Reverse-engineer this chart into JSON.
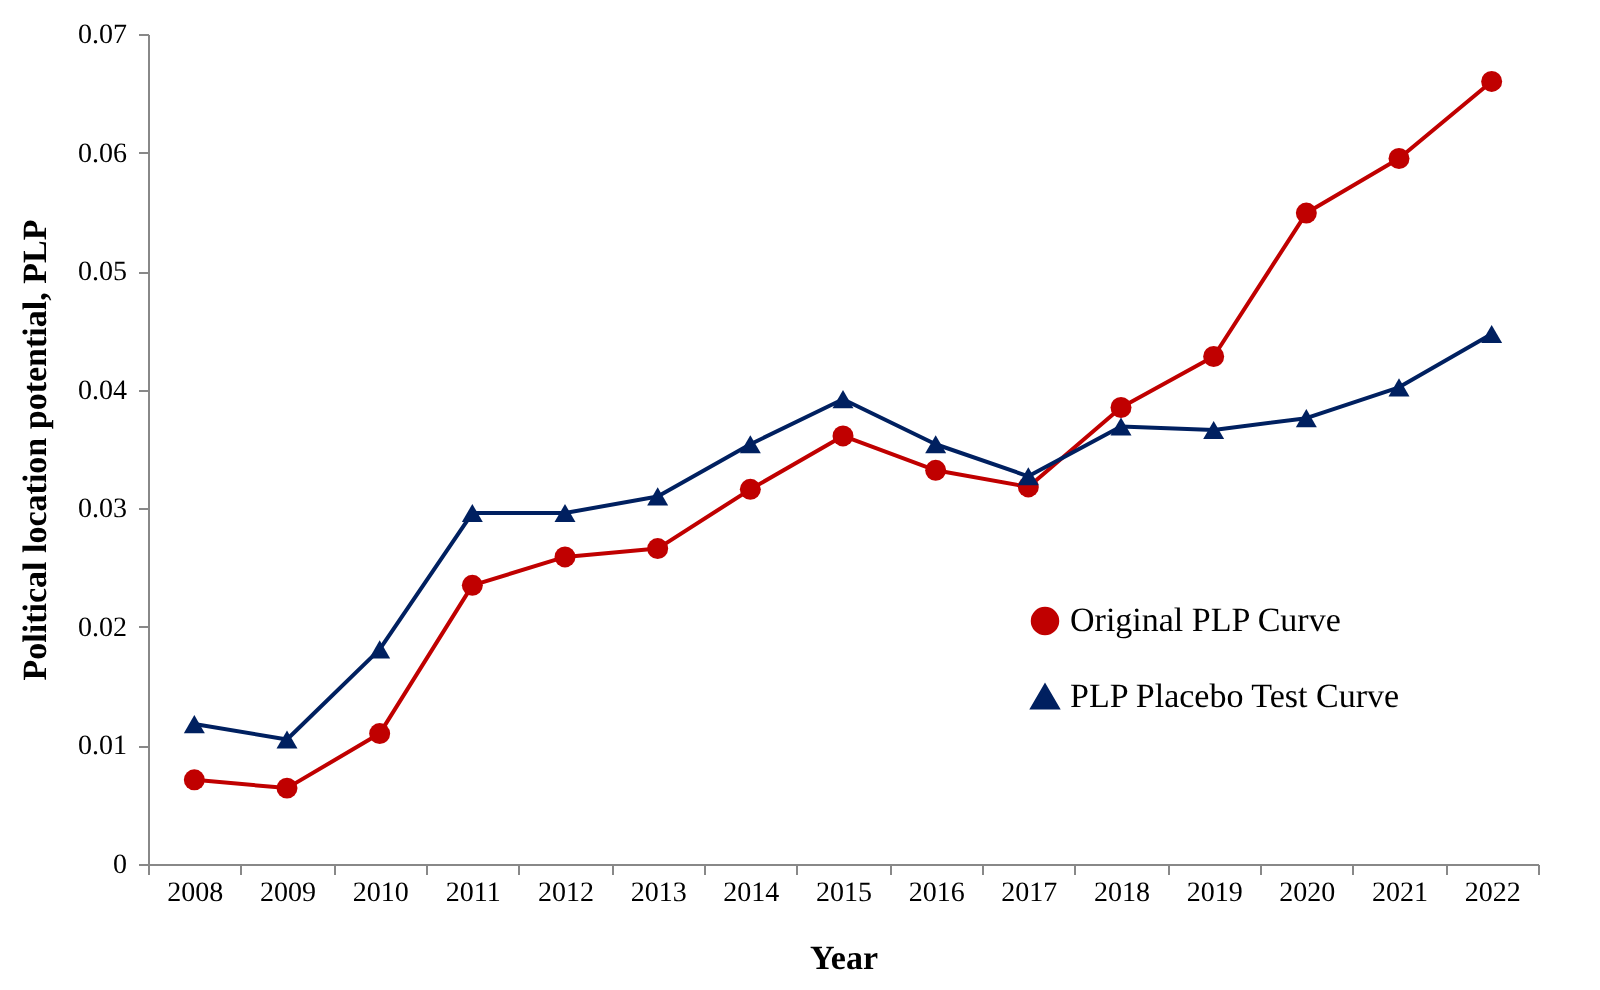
{
  "chart_data": {
    "type": "line",
    "xlabel": "Year",
    "ylabel": "Political location potential, PLP",
    "categories": [
      "2008",
      "2009",
      "2010",
      "2011",
      "2012",
      "2013",
      "2014",
      "2015",
      "2016",
      "2017",
      "2018",
      "2019",
      "2020",
      "2021",
      "2022"
    ],
    "series": [
      {
        "name": "Original PLP Curve",
        "color": "#c00000",
        "marker": "circle",
        "values": [
          0.0071,
          0.0064,
          0.011,
          0.0235,
          0.0259,
          0.0266,
          0.0316,
          0.0361,
          0.0332,
          0.0318,
          0.0385,
          0.0428,
          0.0549,
          0.0595,
          0.066
        ]
      },
      {
        "name": "PLP Placebo Test Curve",
        "color": "#002060",
        "marker": "triangle",
        "values": [
          0.0118,
          0.0105,
          0.0181,
          0.0296,
          0.0296,
          0.031,
          0.0354,
          0.0392,
          0.0354,
          0.0327,
          0.0369,
          0.0366,
          0.0376,
          0.0402,
          0.0447
        ]
      }
    ],
    "ylim": [
      0,
      0.07
    ],
    "yticks": [
      0,
      0.01,
      0.02,
      0.03,
      0.04,
      0.05,
      0.06,
      0.07
    ],
    "grid": false,
    "legend": "bottom right"
  }
}
